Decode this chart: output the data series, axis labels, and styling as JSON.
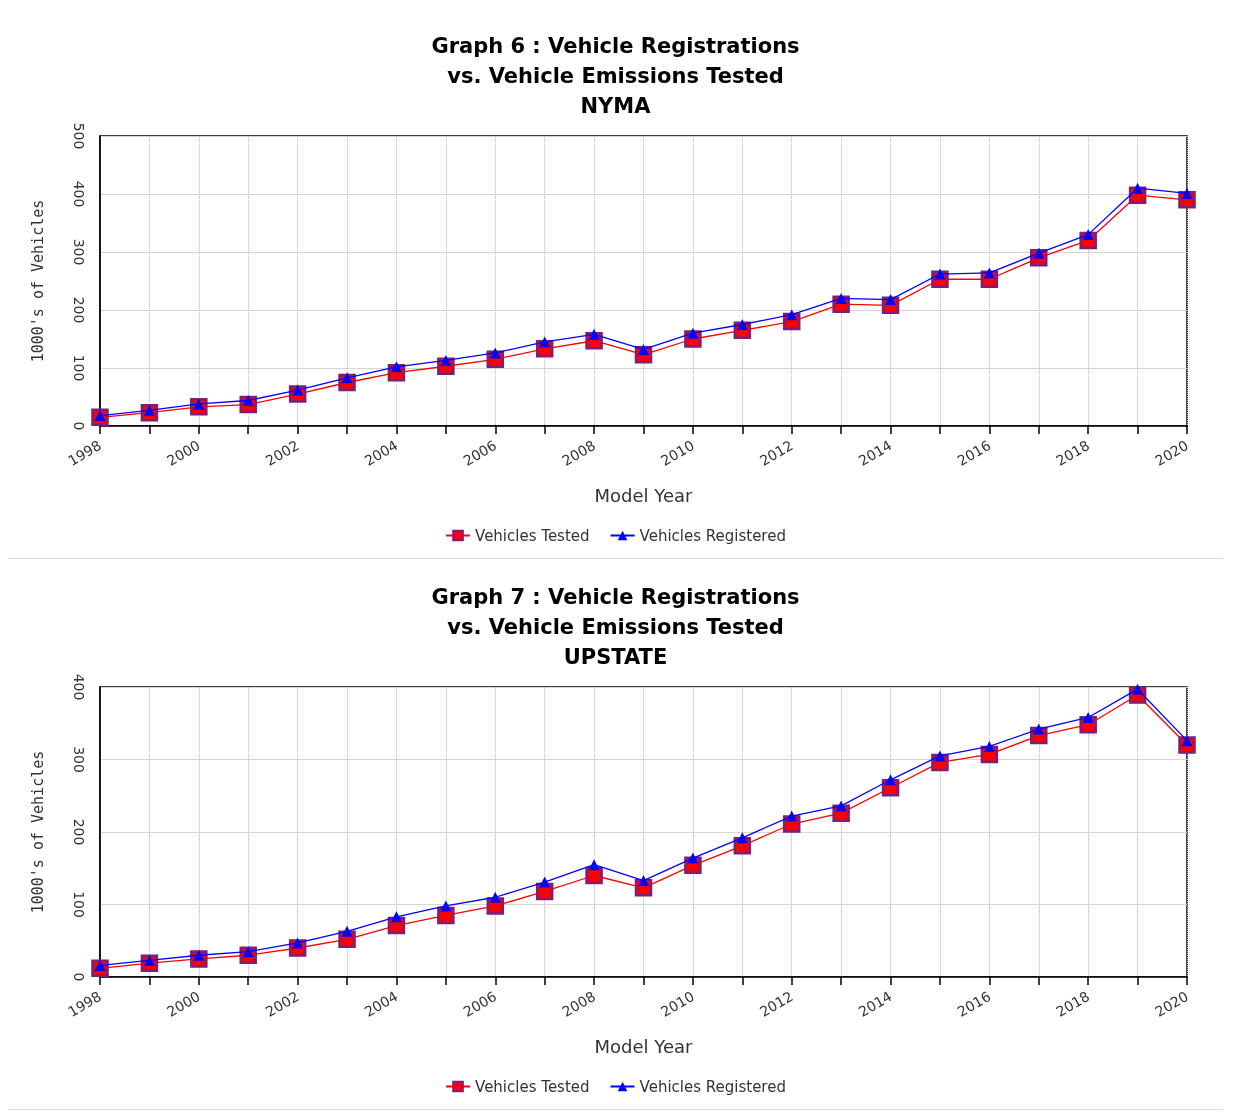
{
  "chart_data": [
    {
      "type": "line",
      "title": "Graph 6 : Vehicle Registrations\nvs. Vehicle Emissions Tested\nNYMA",
      "xlabel": "Model Year",
      "ylabel": "1000's of Vehicles",
      "x": [
        1998,
        1999,
        2000,
        2001,
        2002,
        2003,
        2004,
        2005,
        2006,
        2007,
        2008,
        2009,
        2010,
        2011,
        2012,
        2013,
        2014,
        2015,
        2016,
        2017,
        2018,
        2019,
        2020
      ],
      "series": [
        {
          "name": "Vehicles Tested",
          "color": "#ff0000",
          "marker": "square",
          "values": [
            15,
            23,
            33,
            37,
            55,
            75,
            92,
            103,
            115,
            133,
            147,
            123,
            150,
            165,
            180,
            210,
            208,
            253,
            253,
            290,
            320,
            398,
            390
          ]
        },
        {
          "name": "Vehicles Registered",
          "color": "#0000ff",
          "marker": "triangle",
          "values": [
            18,
            27,
            38,
            44,
            62,
            83,
            102,
            113,
            126,
            145,
            158,
            132,
            160,
            175,
            192,
            220,
            218,
            262,
            264,
            298,
            330,
            410,
            401
          ]
        }
      ],
      "xlim": [
        1998,
        2020
      ],
      "xticks": [
        1998,
        {
          "value": 1999,
          "label": null
        },
        2000,
        {
          "value": 2001,
          "label": null
        },
        2002,
        {
          "value": 2003,
          "label": null
        },
        2004,
        {
          "value": 2005,
          "label": null
        },
        2006,
        {
          "value": 2007,
          "label": null
        },
        2008,
        {
          "value": 2009,
          "label": null
        },
        2010,
        {
          "value": 2011,
          "label": null
        },
        2012,
        {
          "value": 2013,
          "label": null
        },
        2014,
        {
          "value": 2015,
          "label": null
        },
        2016,
        {
          "value": 2017,
          "label": null
        },
        2018,
        {
          "value": 2019,
          "label": null
        },
        2020
      ],
      "ylim": [
        0,
        500
      ],
      "yticks": [
        0,
        100,
        200,
        300,
        400,
        500
      ],
      "grid": true,
      "legend": "bottom",
      "line_style": "solid"
    },
    {
      "type": "line",
      "title": "Graph 7 : Vehicle Registrations\nvs. Vehicle Emissions Tested\nUPSTATE",
      "xlabel": "Model Year",
      "ylabel": "1000's of Vehicles",
      "x": [
        1998,
        1999,
        2000,
        2001,
        2002,
        2003,
        2004,
        2005,
        2006,
        2007,
        2008,
        2009,
        2010,
        2011,
        2012,
        2013,
        2014,
        2015,
        2016,
        2017,
        2018,
        2019,
        2020
      ],
      "series": [
        {
          "name": "Vehicles Tested",
          "color": "#ff0000",
          "marker": "square",
          "values": [
            12,
            19,
            25,
            30,
            40,
            52,
            71,
            85,
            98,
            118,
            140,
            123,
            154,
            181,
            211,
            226,
            261,
            296,
            307,
            333,
            348,
            389,
            320
          ]
        },
        {
          "name": "Vehicles Registered",
          "color": "#0000ff",
          "marker": "triangle",
          "values": [
            16,
            23,
            30,
            35,
            47,
            63,
            83,
            98,
            110,
            131,
            155,
            133,
            164,
            192,
            222,
            236,
            272,
            305,
            318,
            342,
            358,
            397,
            326
          ]
        }
      ],
      "xlim": [
        1998,
        2020
      ],
      "xticks": [
        1998,
        {
          "value": 1999,
          "label": null
        },
        2000,
        {
          "value": 2001,
          "label": null
        },
        2002,
        {
          "value": 2003,
          "label": null
        },
        2004,
        {
          "value": 2005,
          "label": null
        },
        2006,
        {
          "value": 2007,
          "label": null
        },
        2008,
        {
          "value": 2009,
          "label": null
        },
        2010,
        {
          "value": 2011,
          "label": null
        },
        2012,
        {
          "value": 2013,
          "label": null
        },
        2014,
        {
          "value": 2015,
          "label": null
        },
        2016,
        {
          "value": 2017,
          "label": null
        },
        2018,
        {
          "value": 2019,
          "label": null
        },
        2020
      ],
      "ylim": [
        0,
        400
      ],
      "yticks": [
        0,
        100,
        200,
        300,
        400
      ],
      "grid": true,
      "legend": "bottom",
      "line_style": "solid"
    }
  ]
}
